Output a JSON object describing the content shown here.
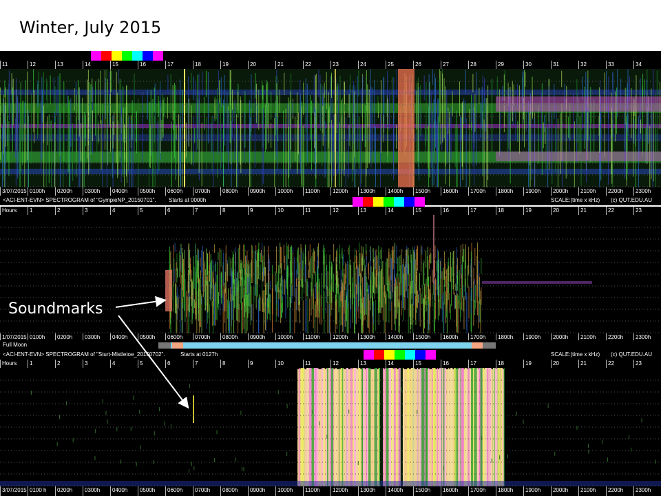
{
  "title": "Winter, July 2015",
  "annotation": "Soundmarks",
  "hour_ticks_top": [
    "11",
    "12",
    "13",
    "14",
    "15",
    "16",
    "17",
    "18",
    "19",
    "20",
    "21",
    "22",
    "23",
    "24",
    "25",
    "26",
    "27",
    "28",
    "29",
    "30",
    "31",
    "32",
    "33",
    "34"
  ],
  "hour_ticks": [
    "Hours",
    "1",
    "2",
    "3",
    "4",
    "5",
    "6",
    "7",
    "8",
    "9",
    "10",
    "11",
    "12",
    "13",
    "14",
    "15",
    "16",
    "17",
    "18",
    "19",
    "20",
    "21",
    "22",
    "23"
  ],
  "time_ticks": [
    "3/07/2015",
    "0100h",
    "0200h",
    "0300h",
    "0400h",
    "0500h",
    "0600h",
    "0700h",
    "0800h",
    "0900h",
    "1000h",
    "1100h",
    "1200h",
    "1300h",
    "1400h",
    "1500h",
    "1600h",
    "1700h",
    "1800h",
    "1900h",
    "2000h",
    "2100h",
    "2200h",
    "2300h"
  ],
  "time_ticks_mid": [
    "1/07/2015",
    "0100h",
    "0200h",
    "0300h",
    "0400h",
    "0500h",
    "0600h",
    "0700h",
    "0800h",
    "0900h",
    "1000h",
    "1100h",
    "1200h",
    "1300h",
    "1400h",
    "1500h",
    "1600h",
    "1700h",
    "1800h",
    "1900h",
    "2000h",
    "2100h",
    "2200h",
    "2300h"
  ],
  "time_ticks_bottom": [
    "3/07/2015",
    "0100 h",
    "0200h",
    "0300h",
    "0400h",
    "0500h",
    "0600h",
    "0700h",
    "0800h",
    "0900h",
    "1000h",
    "1100h",
    "1200h",
    "1300h",
    "1400h",
    "1500h",
    "1600h",
    "1700h",
    "1800h",
    "1900h",
    "2000h",
    "2100h",
    "2200h",
    "2300h"
  ],
  "panel2": {
    "header_left": "<ACI-ENT-EVN> SPECTROGRAM  of \"GympieNP_20150701\".",
    "header_start": "Starts at 0000h",
    "scale": "SCALE:(time x kHz)",
    "copyright": "(c) QUT.EDU.AU"
  },
  "panel3": {
    "header_left": "<ACI-ENT-EVN> SPECTROGRAM  of \"Sturt-Mistletoe_20150702\".",
    "header_start": "Starts at 0127h",
    "scale": "SCALE:(time x kHz)",
    "copyright": "(c) QUT.EDU.AU"
  },
  "moon": {
    "label": "Full Moon"
  },
  "colors": {
    "swatches": [
      "#ff00ff",
      "#ff0000",
      "#ffff00",
      "#00ff00",
      "#00ffff",
      "#0000ff",
      "#ff00ff"
    ],
    "swatches_mid": [
      "#ff00ff",
      "#ff0000",
      "#ffff00",
      "#00ff00",
      "#00ffff",
      "#0000ff",
      "#ff00ff"
    ],
    "moon_track": "#7ed3ee",
    "moon_marker": "#f4a582"
  }
}
